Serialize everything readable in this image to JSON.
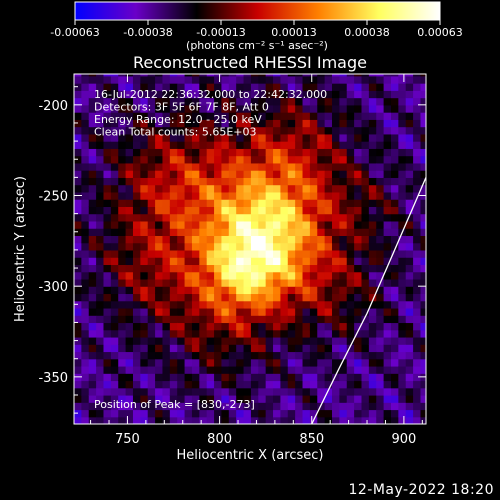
{
  "chart_data": {
    "type": "heatmap",
    "title": "Reconstructed RHESSI Image",
    "xlabel": "Heliocentric X (arcsec)",
    "ylabel": "Heliocentric Y (arcsec)",
    "xlim": [
      721,
      912
    ],
    "ylim": [
      -376,
      -183
    ],
    "xticks": [
      750,
      800,
      850,
      900
    ],
    "yticks": [
      -200,
      -250,
      -300,
      -350
    ],
    "colorbar": {
      "ticks": [
        "-0.00063",
        "-0.00038",
        "-0.00013",
        "0.00013",
        "0.00038",
        "0.00063"
      ],
      "unit_label": "(photons cm⁻² s⁻¹ asec⁻²)",
      "range": [
        -0.00063,
        0.00063
      ],
      "colormap": [
        "#0000ff",
        "#6a00c8",
        "#000000",
        "#c80000",
        "#ff8000",
        "#ffff60",
        "#ffffff"
      ]
    },
    "annotations": [
      "16-Jul-2012 22:36:32.000 to 22:42:32.000",
      "Detectors: 3F 5F 6F 7F 8F, Att 0",
      "Energy Range: 12.0 - 25.0 keV",
      "Clean     Total counts: 5.65E+03"
    ],
    "peak_label": "Position of Peak = [830,-273]",
    "peak": {
      "x": 830,
      "y": -273
    },
    "sources": [
      {
        "x": 828,
        "y": -266,
        "sigma": 22,
        "amp": 0.00058
      },
      {
        "x": 815,
        "y": -290,
        "sigma": 17,
        "amp": 0.00045
      },
      {
        "x": 780,
        "y": -245,
        "sigma": 26,
        "amp": 0.00035
      },
      {
        "x": 840,
        "y": -225,
        "sigma": 22,
        "amp": 0.00025
      },
      {
        "x": 800,
        "y": -315,
        "sigma": 24,
        "amp": 0.00022
      },
      {
        "x": 860,
        "y": -300,
        "sigma": 20,
        "amp": 0.0002
      },
      {
        "x": 760,
        "y": -290,
        "sigma": 20,
        "amp": 0.00018
      },
      {
        "x": 880,
        "y": -255,
        "sigma": 16,
        "amp": 0.00012
      }
    ],
    "limb": [
      [
        912,
        -240
      ],
      [
        895,
        -280
      ],
      [
        880,
        -315
      ],
      [
        865,
        -345
      ],
      [
        850,
        -376
      ]
    ]
  },
  "footer": {
    "date": "12-May-2022 18:20"
  }
}
